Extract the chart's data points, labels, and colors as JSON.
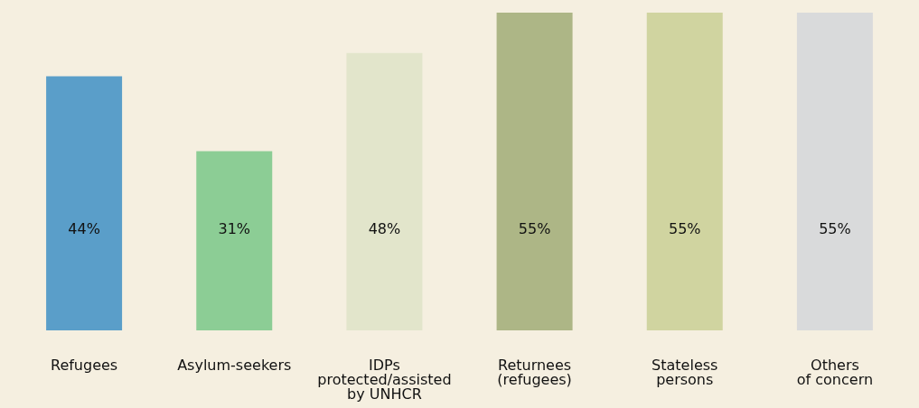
{
  "chart_data": {
    "type": "bar",
    "categories": [
      "Refugees",
      "Asylum-seekers",
      "IDPs\nprotected/assisted\nby UNHCR",
      "Returnees\n(refugees)",
      "Stateless\npersons",
      "Others\nof concern"
    ],
    "values": [
      44,
      31,
      48,
      55,
      55,
      55
    ],
    "value_labels": [
      "44%",
      "31%",
      "48%",
      "55%",
      "55%",
      "55%"
    ],
    "colors": [
      "#5a9ec9",
      "#8ccd95",
      "#e2e5cb",
      "#adb686",
      "#d0d4a0",
      "#d9dadb"
    ]
  }
}
